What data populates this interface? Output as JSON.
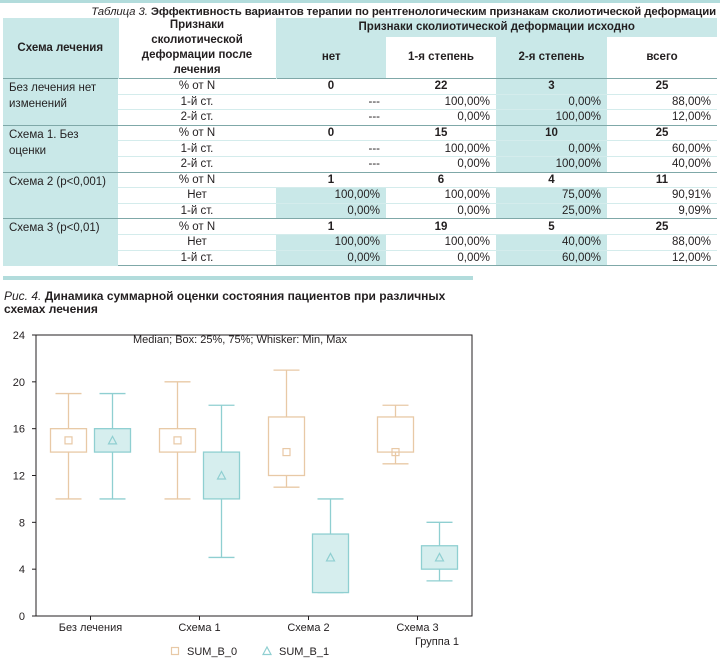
{
  "table": {
    "caption_lead": "Таблица 3.",
    "caption_text": "Эффективность вариантов терапии по рентгенологическим признакам сколиотической деформации",
    "headers": {
      "scheme": "Схема лечения",
      "feature": "Признаки сколиотической деформации после лечения",
      "initial": "Признаки сколиотической деформации исходно",
      "cols": [
        "нет",
        "1-я степень",
        "2-я степень",
        "всего"
      ]
    },
    "groups": [
      {
        "scheme": "Без лечения нет изменений",
        "rows": [
          {
            "feature": "% от N",
            "values": [
              "0",
              "22",
              "3",
              "25"
            ]
          },
          {
            "feature": "1-й ст.",
            "values": [
              "---",
              "100,00%",
              "0,00%",
              "88,00%"
            ]
          },
          {
            "feature": "2-й ст.",
            "values": [
              "---",
              "0,00%",
              "100,00%",
              "12,00%"
            ]
          }
        ]
      },
      {
        "scheme": "Схема 1. Без оценки",
        "rows": [
          {
            "feature": "% от N",
            "values": [
              "0",
              "15",
              "10",
              "25"
            ]
          },
          {
            "feature": "1-й ст.",
            "values": [
              "---",
              "100,00%",
              "0,00%",
              "60,00%"
            ]
          },
          {
            "feature": "2-й ст.",
            "values": [
              "---",
              "0,00%",
              "100,00%",
              "40,00%"
            ]
          }
        ]
      },
      {
        "scheme": "Схема 2 (p<0,001)",
        "rows": [
          {
            "feature": "% от N",
            "values": [
              "1",
              "6",
              "4",
              "11"
            ]
          },
          {
            "feature": "Нет",
            "values": [
              "100,00%",
              "100,00%",
              "75,00%",
              "90,91%"
            ]
          },
          {
            "feature": "1-й ст.",
            "values": [
              "0,00%",
              "0,00%",
              "25,00%",
              "9,09%"
            ]
          }
        ]
      },
      {
        "scheme": "Схема 3 (p<0,01)",
        "rows": [
          {
            "feature": "% от N",
            "values": [
              "1",
              "19",
              "5",
              "25"
            ]
          },
          {
            "feature": "Нет",
            "values": [
              "100,00%",
              "100,00%",
              "40,00%",
              "88,00%"
            ]
          },
          {
            "feature": "1-й ст.",
            "values": [
              "0,00%",
              "0,00%",
              "60,00%",
              "12,00%"
            ]
          }
        ]
      }
    ]
  },
  "figure": {
    "title_lead": "Рис. 4.",
    "title_text": "Динамика суммарной оценки состояния пациентов при различных схемах лечения"
  },
  "chart_data": {
    "type": "box",
    "subtitle": "Median; Box: 25%, 75%; Whisker: Min, Max",
    "xlabel": "Группа 1",
    "categories": [
      "Без лечения",
      "Схема 1",
      "Схема 2",
      "Схема 3"
    ],
    "ylim": [
      0,
      24
    ],
    "yticks": [
      "0",
      "4",
      "8",
      "12",
      "16",
      "20",
      "24"
    ],
    "legend_position": "bottom",
    "colors": {
      "sum_b_0": "#e8c9a6",
      "sum_b_1": "#8fcfd1",
      "box_fill_1": "#d6eeee"
    },
    "series": [
      {
        "name": "SUM_B_0",
        "marker": "square",
        "stats": [
          {
            "min": 10,
            "q1": 14,
            "median": 15,
            "q3": 16,
            "max": 19
          },
          {
            "min": 10,
            "q1": 14,
            "median": 15,
            "q3": 16,
            "max": 20
          },
          {
            "min": 11,
            "q1": 12,
            "median": 14,
            "q3": 17,
            "max": 21
          },
          {
            "min": 13,
            "q1": 14,
            "median": 14,
            "q3": 17,
            "max": 18
          }
        ]
      },
      {
        "name": "SUM_B_1",
        "marker": "triangle",
        "stats": [
          {
            "min": 10,
            "q1": 14,
            "median": 15,
            "q3": 16,
            "max": 19
          },
          {
            "min": 5,
            "q1": 10,
            "median": 12,
            "q3": 14,
            "max": 18
          },
          {
            "min": 2,
            "q1": 2,
            "median": 5,
            "q3": 7,
            "max": 10
          },
          {
            "min": 3,
            "q1": 4,
            "median": 5,
            "q3": 6,
            "max": 8
          }
        ]
      }
    ]
  }
}
